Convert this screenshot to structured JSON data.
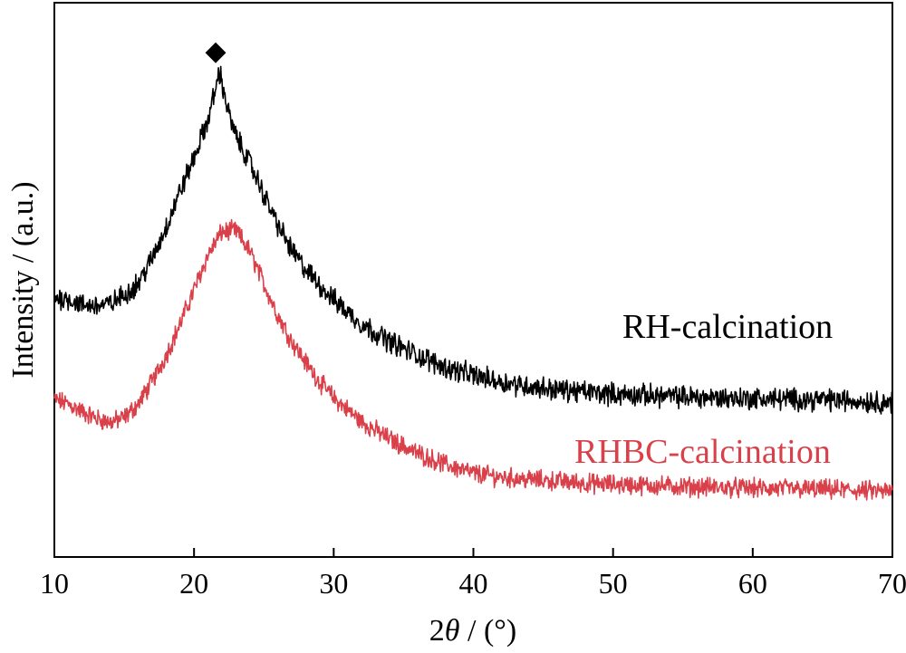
{
  "chart_data": {
    "type": "line",
    "xlabel_prefix": "2",
    "xlabel_symbol": "θ",
    "xlabel_suffix": " / (°)",
    "ylabel": "Intensity / (a.u.)",
    "xlim": [
      10,
      70
    ],
    "ylim": [
      0,
      100
    ],
    "x_ticks": [
      10,
      20,
      30,
      40,
      50,
      60,
      70
    ],
    "y_ticks_labeled": false,
    "grid": false,
    "legend": "none",
    "annotations": [
      {
        "text": "◆",
        "x": 21.5,
        "y": 97.5,
        "meaning": "peak marker"
      }
    ],
    "series": [
      {
        "name": "RH-calcination",
        "color": "#000000",
        "label_color": "#000000",
        "noise": 1.6,
        "points": [
          [
            10,
            46.8
          ],
          [
            11,
            46.6
          ],
          [
            12,
            45.4
          ],
          [
            13,
            45.4
          ],
          [
            14,
            45.6
          ],
          [
            15,
            47.3
          ],
          [
            16,
            49.4
          ],
          [
            17,
            53.8
          ],
          [
            18,
            59.5
          ],
          [
            19,
            66.0
          ],
          [
            20,
            72.0
          ],
          [
            21,
            78.9
          ],
          [
            21.5,
            84.0
          ],
          [
            21.8,
            87.7
          ],
          [
            22,
            85.5
          ],
          [
            22.5,
            79.8
          ],
          [
            23,
            75.9
          ],
          [
            24,
            71.1
          ],
          [
            25,
            65.4
          ],
          [
            26,
            59.9
          ],
          [
            27,
            55.3
          ],
          [
            28,
            51.8
          ],
          [
            29,
            49.1
          ],
          [
            30,
            46.4
          ],
          [
            32,
            42.0
          ],
          [
            34,
            38.9
          ],
          [
            36,
            36.4
          ],
          [
            38,
            34.2
          ],
          [
            40,
            32.8
          ],
          [
            42,
            31.6
          ],
          [
            44,
            30.8
          ],
          [
            46,
            30.2
          ],
          [
            48,
            29.8
          ],
          [
            50,
            29.4
          ],
          [
            55,
            28.9
          ],
          [
            60,
            28.6
          ],
          [
            65,
            28.4
          ],
          [
            70,
            27.9
          ]
        ]
      },
      {
        "name": "RHBC-calcination",
        "color": "#d9404a",
        "label_color": "#d9404a",
        "noise": 1.4,
        "points": [
          [
            10,
            28.4
          ],
          [
            11,
            27.6
          ],
          [
            12,
            26.2
          ],
          [
            13,
            25.0
          ],
          [
            14,
            24.3
          ],
          [
            15,
            25.1
          ],
          [
            16,
            27.6
          ],
          [
            17,
            31.6
          ],
          [
            18,
            36.4
          ],
          [
            19,
            42.0
          ],
          [
            20,
            48.2
          ],
          [
            21,
            54.5
          ],
          [
            22,
            58.7
          ],
          [
            23,
            58.9
          ],
          [
            24,
            55.1
          ],
          [
            25,
            49.3
          ],
          [
            26,
            43.6
          ],
          [
            27,
            38.9
          ],
          [
            28,
            35.1
          ],
          [
            29,
            31.6
          ],
          [
            30,
            28.7
          ],
          [
            32,
            24.4
          ],
          [
            34,
            21.3
          ],
          [
            36,
            18.7
          ],
          [
            38,
            16.7
          ],
          [
            40,
            15.1
          ],
          [
            42,
            14.4
          ],
          [
            44,
            14.0
          ],
          [
            46,
            13.7
          ],
          [
            48,
            13.3
          ],
          [
            50,
            13.1
          ],
          [
            55,
            12.7
          ],
          [
            60,
            12.4
          ],
          [
            65,
            12.2
          ],
          [
            70,
            11.8
          ]
        ]
      }
    ]
  }
}
